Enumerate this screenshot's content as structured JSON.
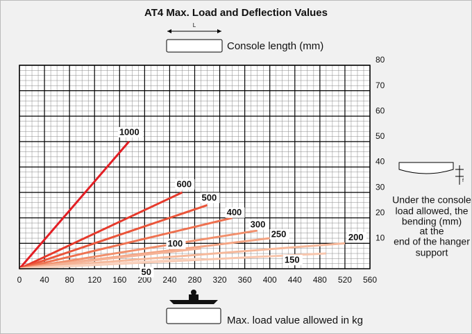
{
  "chart_data": {
    "type": "line",
    "title": "AT4 Max. Load and Deflection Values",
    "top_icon_label": "L",
    "top_caption": "Console length (mm)",
    "bottom_caption": "Max. load value allowed in kg",
    "side_icon_label": "f",
    "side_caption": [
      "Under the console",
      "load allowed, the",
      "bending (mm)",
      "at the",
      "end of the hanger",
      "support"
    ],
    "xlim": [
      0,
      560
    ],
    "xticks": [
      0,
      40,
      80,
      120,
      160,
      200,
      240,
      280,
      320,
      360,
      400,
      440,
      480,
      520,
      560
    ],
    "ylim": [
      0,
      80
    ],
    "yticks": [
      10,
      20,
      30,
      40,
      50,
      60,
      70,
      80
    ],
    "grid": true,
    "series": [
      {
        "name": "1000",
        "color": "#e31e24",
        "x": [
          0,
          175
        ],
        "values": [
          0,
          50
        ]
      },
      {
        "name": "600",
        "color": "#e6392b",
        "x": [
          0,
          260
        ],
        "values": [
          0,
          30
        ]
      },
      {
        "name": "500",
        "color": "#ea553a",
        "x": [
          0,
          300
        ],
        "values": [
          0,
          25
        ]
      },
      {
        "name": "400",
        "color": "#ee7150",
        "x": [
          0,
          340
        ],
        "values": [
          0,
          20
        ]
      },
      {
        "name": "300",
        "color": "#f18f6c",
        "x": [
          0,
          380
        ],
        "values": [
          0,
          15
        ]
      },
      {
        "name": "250",
        "color": "#f4a483",
        "x": [
          0,
          400
        ],
        "values": [
          0,
          12
        ]
      },
      {
        "name": "200",
        "color": "#f6b89a",
        "x": [
          0,
          520
        ],
        "values": [
          0,
          10
        ]
      },
      {
        "name": "150",
        "color": "#f8c6ad",
        "x": [
          0,
          490
        ],
        "values": [
          0,
          6
        ]
      },
      {
        "name": "100",
        "color": "#f5b296",
        "x": [
          0,
          290
        ],
        "values": [
          0,
          8
        ]
      },
      {
        "name": "50",
        "color": "#f9d3c0",
        "x": [
          0,
          290
        ],
        "values": [
          0,
          4
        ]
      }
    ]
  }
}
